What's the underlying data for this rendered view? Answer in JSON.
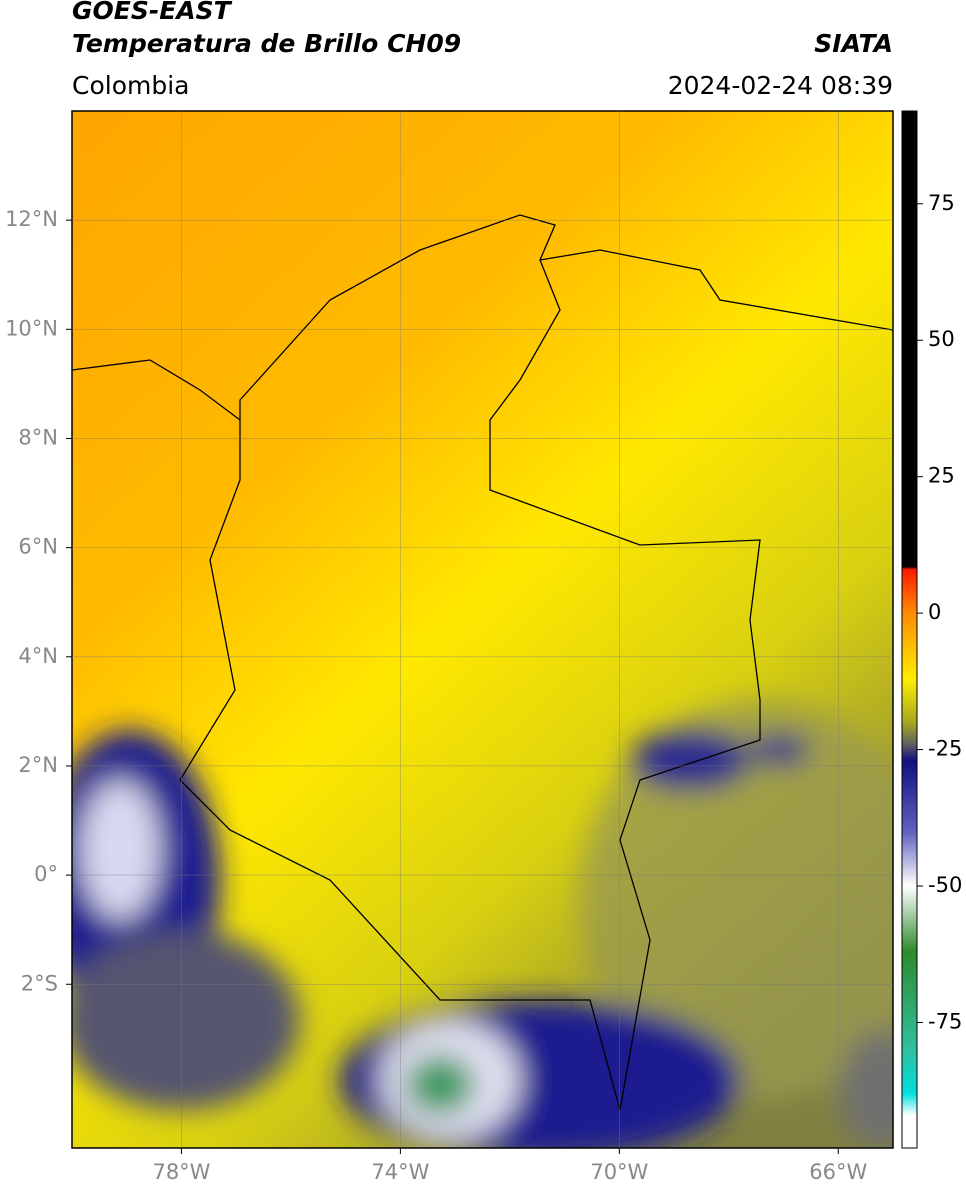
{
  "header": {
    "line1": "GOES-EAST",
    "line2": "Temperatura de Brillo CH09",
    "region": "Colombia",
    "source": "SIATA",
    "timestamp": "2024-02-24 08:39"
  },
  "map": {
    "lon_range": [
      -80,
      -65
    ],
    "lat_range": [
      -5,
      14
    ],
    "lon_ticks": [
      {
        "value": -78,
        "label": "78°W"
      },
      {
        "value": -74,
        "label": "74°W"
      },
      {
        "value": -70,
        "label": "70°W"
      },
      {
        "value": -66,
        "label": "66°W"
      }
    ],
    "lat_ticks": [
      {
        "value": 12,
        "label": "12°N"
      },
      {
        "value": 10,
        "label": "10°N"
      },
      {
        "value": 8,
        "label": "8°N"
      },
      {
        "value": 6,
        "label": "6°N"
      },
      {
        "value": 4,
        "label": "4°N"
      },
      {
        "value": 2,
        "label": "2°N"
      },
      {
        "value": 0,
        "label": "0°"
      },
      {
        "value": -2,
        "label": "2°S"
      }
    ],
    "grid": true
  },
  "colorbar": {
    "range": [
      -98,
      92
    ],
    "ticks": [
      75,
      50,
      25,
      0,
      -25,
      -50,
      -75
    ],
    "stops": [
      {
        "value": 92,
        "color": "#000000"
      },
      {
        "value": 8.5,
        "color": "#000000"
      },
      {
        "value": 8,
        "color": "#ff1a00"
      },
      {
        "value": 0,
        "color": "#ff8c00"
      },
      {
        "value": -12,
        "color": "#ffee00"
      },
      {
        "value": -20,
        "color": "#a8a820"
      },
      {
        "value": -24,
        "color": "#606060"
      },
      {
        "value": -27,
        "color": "#101080"
      },
      {
        "value": -40,
        "color": "#6060c0"
      },
      {
        "value": -50,
        "color": "#ffffff"
      },
      {
        "value": -62,
        "color": "#2e8b2e"
      },
      {
        "value": -80,
        "color": "#30c0a0"
      },
      {
        "value": -88,
        "color": "#00e0e0"
      },
      {
        "value": -92,
        "color": "#ffffff"
      },
      {
        "value": -98,
        "color": "#ffffff"
      }
    ]
  }
}
